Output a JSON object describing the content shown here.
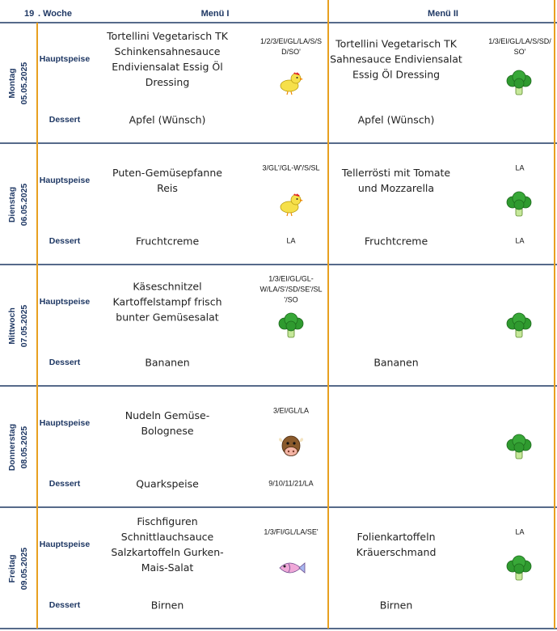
{
  "header": {
    "week_number": "19",
    "week_label": ". Woche",
    "menu1": "Menü I",
    "menu2": "Menü II"
  },
  "days": [
    {
      "day": "Montag",
      "date": "05.05.2025",
      "main_label": "Hauptspeise",
      "dessert_label": "Dessert",
      "menu1": {
        "main": [
          "Tortellini Vegetarisch TK",
          "Schinkensahnesauce",
          "Endiviensalat Essig Öl",
          "Dressing"
        ],
        "main_codes": [
          "1/2/3/EI/GL/LA/S/S",
          "D/SO'"
        ],
        "dessert": "Apfel (Wünsch)"
      },
      "menu2": {
        "main": [
          "Tortellini Vegetarisch TK",
          "Sahnesauce Endiviensalat",
          "Essig Öl Dressing"
        ],
        "main_codes": [
          "1/3/EI/GL/LA/S/SD/",
          "SO'"
        ],
        "dessert": "Apfel (Wünsch)"
      }
    },
    {
      "day": "Dienstag",
      "date": "06.05.2025",
      "main_label": "Hauptspeise",
      "dessert_label": "Dessert",
      "menu1": {
        "main": [
          "Puten-Gemüsepfanne",
          "Reis"
        ],
        "main_codes": [
          "3/GL'/GL-W'/S/SL"
        ],
        "dessert": "Fruchtcreme",
        "dessert_codes": [
          "LA"
        ]
      },
      "menu2": {
        "main": [
          "Tellerrösti mit Tomate",
          "und Mozzarella"
        ],
        "main_codes": [
          "LA"
        ],
        "dessert": "Fruchtcreme",
        "dessert_codes": [
          "LA"
        ]
      }
    },
    {
      "day": "Mittwoch",
      "date": "07.05.2025",
      "main_label": "Hauptspeise",
      "dessert_label": "Dessert",
      "menu1": {
        "main": [
          "Käseschnitzel",
          "Kartoffelstampf frisch",
          "bunter Gemüsesalat"
        ],
        "main_codes": [
          "1/3/EI/GL/GL-",
          "W/LA/S'/SD/SE'/SL",
          "'/SO"
        ],
        "dessert": "Bananen"
      },
      "menu2": {
        "dessert": "Bananen"
      }
    },
    {
      "day": "Donnerstag",
      "date": "08.05.2025",
      "main_label": "Hauptspeise",
      "dessert_label": "Dessert",
      "menu1": {
        "main": [
          "Nudeln Gemüse-",
          "Bolognese"
        ],
        "main_codes": [
          "3/EI/GL/LA"
        ],
        "dessert": "Quarkspeise",
        "dessert_codes": [
          "9/10/11/21/LA"
        ]
      },
      "menu2": {}
    },
    {
      "day": "Freitag",
      "date": "09.05.2025",
      "main_label": "Hauptspeise",
      "dessert_label": "Dessert",
      "menu1": {
        "main": [
          "Fischfiguren",
          "Schnittlauchsauce",
          "Salzkartoffeln Gurken-",
          "Mais-Salat"
        ],
        "main_codes": [
          "1/3/FI/GL/LA/SE'"
        ],
        "dessert": "Birnen"
      },
      "menu2": {
        "main": [
          "Folienkartoffeln",
          "Kräuerschmand"
        ],
        "main_codes": [
          "LA"
        ],
        "dessert": "Birnen"
      }
    }
  ]
}
